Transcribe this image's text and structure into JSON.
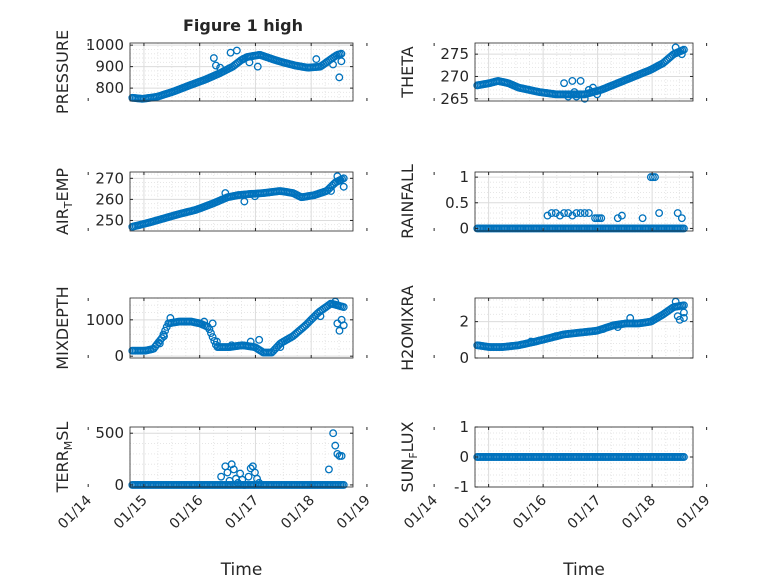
{
  "figure": {
    "title": "Figure 1 high"
  },
  "colors": {
    "marker": "#0072BD",
    "grid": "#d9d9d9",
    "axis": "#262626"
  },
  "chart_data": [
    {
      "type": "scatter",
      "id": "pressure",
      "title": "Figure 1 high",
      "ylabel": "PRESSURE",
      "ylabel_sub": "",
      "xlim": [
        "2021-01-14T18:00",
        "2021-01-18T18:00"
      ],
      "ylim": [
        740,
        1010
      ],
      "yticks": [
        800,
        900,
        1000
      ],
      "grid": true,
      "xlabel": "",
      "x_range": [
        "2021-01-14T19:00",
        "2021-01-18T13:00"
      ],
      "profile": [
        [
          0,
          755
        ],
        [
          0.05,
          750
        ],
        [
          0.12,
          760
        ],
        [
          0.2,
          785
        ],
        [
          0.28,
          815
        ],
        [
          0.35,
          840
        ],
        [
          0.42,
          870
        ],
        [
          0.48,
          900
        ],
        [
          0.52,
          930
        ],
        [
          0.55,
          945
        ],
        [
          0.58,
          950
        ],
        [
          0.61,
          955
        ],
        [
          0.64,
          945
        ],
        [
          0.67,
          935
        ],
        [
          0.72,
          920
        ],
        [
          0.78,
          905
        ],
        [
          0.84,
          895
        ],
        [
          0.9,
          900
        ],
        [
          0.95,
          935
        ],
        [
          0.98,
          955
        ],
        [
          1,
          960
        ]
      ],
      "extra_points": [
        [
          0.39,
          940
        ],
        [
          0.4,
          905
        ],
        [
          0.42,
          895
        ],
        [
          0.47,
          965
        ],
        [
          0.5,
          975
        ],
        [
          0.53,
          935
        ],
        [
          0.56,
          920
        ],
        [
          0.6,
          900
        ],
        [
          0.88,
          935
        ],
        [
          0.93,
          920
        ],
        [
          0.96,
          910
        ],
        [
          0.99,
          850
        ],
        [
          1.0,
          925
        ]
      ]
    },
    {
      "type": "scatter",
      "id": "theta",
      "title": "",
      "ylabel": "THETA",
      "ylabel_sub": "",
      "xlim": [
        "2021-01-14T18:00",
        "2021-01-18T18:00"
      ],
      "ylim": [
        264.5,
        277.5
      ],
      "yticks": [
        265,
        270,
        275
      ],
      "grid": true,
      "xlabel": "",
      "x_range": [
        "2021-01-14T19:00",
        "2021-01-18T14:00"
      ],
      "profile": [
        [
          0,
          268
        ],
        [
          0.06,
          268.5
        ],
        [
          0.1,
          269
        ],
        [
          0.15,
          268.5
        ],
        [
          0.2,
          267.5
        ],
        [
          0.3,
          266.5
        ],
        [
          0.38,
          266
        ],
        [
          0.45,
          266
        ],
        [
          0.52,
          266
        ],
        [
          0.6,
          267
        ],
        [
          0.68,
          268.5
        ],
        [
          0.76,
          270
        ],
        [
          0.84,
          271.5
        ],
        [
          0.9,
          273
        ],
        [
          0.95,
          275
        ],
        [
          1,
          276
        ]
      ],
      "extra_points": [
        [
          0.42,
          268.5
        ],
        [
          0.44,
          265.5
        ],
        [
          0.46,
          269
        ],
        [
          0.47,
          266.5
        ],
        [
          0.48,
          265.5
        ],
        [
          0.5,
          269
        ],
        [
          0.52,
          265
        ],
        [
          0.54,
          267
        ],
        [
          0.56,
          267.5
        ],
        [
          0.58,
          266
        ],
        [
          0.96,
          276.5
        ],
        [
          0.99,
          275
        ]
      ]
    },
    {
      "type": "scatter",
      "id": "airtemp",
      "title": "",
      "ylabel": "AIR",
      "ylabel_sub": "T",
      "ylabel_tail": "EMP",
      "xlim": [
        "2021-01-14T18:00",
        "2021-01-18T18:00"
      ],
      "ylim": [
        245,
        273
      ],
      "yticks": [
        250,
        260,
        270
      ],
      "grid": true,
      "xlabel": "",
      "x_range": [
        "2021-01-14T19:00",
        "2021-01-18T14:00"
      ],
      "profile": [
        [
          0,
          247
        ],
        [
          0.08,
          249
        ],
        [
          0.15,
          251
        ],
        [
          0.22,
          253
        ],
        [
          0.3,
          255
        ],
        [
          0.38,
          258
        ],
        [
          0.45,
          261
        ],
        [
          0.5,
          262
        ],
        [
          0.55,
          262.5
        ],
        [
          0.62,
          263
        ],
        [
          0.7,
          264
        ],
        [
          0.76,
          263
        ],
        [
          0.8,
          261
        ],
        [
          0.86,
          262
        ],
        [
          0.92,
          264
        ],
        [
          0.96,
          268
        ],
        [
          1,
          270
        ]
      ],
      "extra_points": [
        [
          0.44,
          263
        ],
        [
          0.5,
          262
        ],
        [
          0.53,
          259
        ],
        [
          0.58,
          261.5
        ],
        [
          0.94,
          264
        ],
        [
          0.97,
          271
        ],
        [
          0.98,
          269
        ],
        [
          1.0,
          266
        ]
      ]
    },
    {
      "type": "scatter",
      "id": "rainfall",
      "title": "",
      "ylabel": "RAINFALL",
      "ylabel_sub": "",
      "xlim": [
        "2021-01-14T18:00",
        "2021-01-18T18:00"
      ],
      "ylim": [
        -0.05,
        1.1
      ],
      "yticks": [
        0,
        0.5,
        1
      ],
      "grid": true,
      "xlabel": "",
      "x_range": [
        "2021-01-14T19:00",
        "2021-01-18T14:00"
      ],
      "profile": [
        [
          0,
          0
        ],
        [
          1,
          0
        ]
      ],
      "extra_points": [
        [
          0.34,
          0.25
        ],
        [
          0.36,
          0.3
        ],
        [
          0.38,
          0.3
        ],
        [
          0.4,
          0.25
        ],
        [
          0.42,
          0.3
        ],
        [
          0.44,
          0.3
        ],
        [
          0.46,
          0.25
        ],
        [
          0.48,
          0.3
        ],
        [
          0.5,
          0.3
        ],
        [
          0.52,
          0.3
        ],
        [
          0.54,
          0.3
        ],
        [
          0.57,
          0.2
        ],
        [
          0.58,
          0.2
        ],
        [
          0.59,
          0.2
        ],
        [
          0.6,
          0.2
        ],
        [
          0.68,
          0.2
        ],
        [
          0.7,
          0.25
        ],
        [
          0.8,
          0.2
        ],
        [
          0.84,
          1
        ],
        [
          0.85,
          1
        ],
        [
          0.86,
          1
        ],
        [
          0.88,
          0.3
        ],
        [
          0.97,
          0.3
        ],
        [
          0.99,
          0.2
        ]
      ]
    },
    {
      "type": "scatter",
      "id": "mixdepth",
      "title": "",
      "ylabel": "MIXDEPTH",
      "ylabel_sub": "",
      "xlim": [
        "2021-01-14T18:00",
        "2021-01-18T18:00"
      ],
      "ylim": [
        -50,
        1600
      ],
      "yticks": [
        0,
        1000
      ],
      "grid": true,
      "xlabel": "",
      "x_range": [
        "2021-01-14T19:00",
        "2021-01-18T14:00"
      ],
      "profile": [
        [
          0,
          150
        ],
        [
          0.06,
          150
        ],
        [
          0.1,
          200
        ],
        [
          0.14,
          500
        ],
        [
          0.17,
          900
        ],
        [
          0.22,
          950
        ],
        [
          0.28,
          950
        ],
        [
          0.32,
          900
        ],
        [
          0.36,
          800
        ],
        [
          0.4,
          250
        ],
        [
          0.46,
          250
        ],
        [
          0.52,
          300
        ],
        [
          0.58,
          250
        ],
        [
          0.62,
          100
        ],
        [
          0.66,
          100
        ],
        [
          0.7,
          350
        ],
        [
          0.76,
          550
        ],
        [
          0.82,
          850
        ],
        [
          0.88,
          1200
        ],
        [
          0.94,
          1450
        ],
        [
          1,
          1350
        ]
      ],
      "extra_points": [
        [
          0.13,
          350
        ],
        [
          0.15,
          550
        ],
        [
          0.18,
          1050
        ],
        [
          0.34,
          950
        ],
        [
          0.38,
          900
        ],
        [
          0.4,
          400
        ],
        [
          0.47,
          300
        ],
        [
          0.52,
          300
        ],
        [
          0.56,
          400
        ],
        [
          0.6,
          450
        ],
        [
          0.7,
          250
        ],
        [
          0.89,
          1100
        ],
        [
          0.96,
          1500
        ],
        [
          0.97,
          900
        ],
        [
          0.98,
          700
        ],
        [
          1.0,
          850
        ],
        [
          0.99,
          1000
        ]
      ]
    },
    {
      "type": "scatter",
      "id": "h2omixra",
      "title": "",
      "ylabel": "H2OMIXRA",
      "ylabel_sub": "",
      "xlim": [
        "2021-01-14T18:00",
        "2021-01-18T18:00"
      ],
      "ylim": [
        0,
        3.3
      ],
      "yticks": [
        0,
        2
      ],
      "grid": true,
      "xlabel": "",
      "x_range": [
        "2021-01-14T19:00",
        "2021-01-18T14:00"
      ],
      "profile": [
        [
          0,
          0.7
        ],
        [
          0.06,
          0.6
        ],
        [
          0.12,
          0.6
        ],
        [
          0.2,
          0.7
        ],
        [
          0.28,
          0.9
        ],
        [
          0.35,
          1.1
        ],
        [
          0.42,
          1.3
        ],
        [
          0.5,
          1.4
        ],
        [
          0.58,
          1.5
        ],
        [
          0.66,
          1.8
        ],
        [
          0.72,
          1.9
        ],
        [
          0.78,
          1.9
        ],
        [
          0.84,
          2.0
        ],
        [
          0.9,
          2.4
        ],
        [
          0.95,
          2.8
        ],
        [
          1,
          2.9
        ]
      ],
      "extra_points": [
        [
          0.26,
          0.9
        ],
        [
          0.38,
          1.2
        ],
        [
          0.61,
          1.6
        ],
        [
          0.68,
          1.7
        ],
        [
          0.74,
          2.2
        ],
        [
          0.96,
          3.1
        ],
        [
          0.97,
          2.3
        ],
        [
          0.98,
          2.1
        ],
        [
          1.0,
          2.5
        ],
        [
          1.0,
          2.2
        ]
      ]
    },
    {
      "type": "scatter",
      "id": "terrmsl",
      "title": "",
      "ylabel": "TERR",
      "ylabel_sub": "M",
      "ylabel_tail": "SL",
      "xlim": [
        "2021-01-14T18:00",
        "2021-01-18T18:00"
      ],
      "ylim": [
        -20,
        560
      ],
      "yticks": [
        0,
        500
      ],
      "grid": true,
      "xlabel": "Time",
      "x_range": [
        "2021-01-14T19:00",
        "2021-01-18T14:00"
      ],
      "profile": [
        [
          0,
          0
        ],
        [
          1,
          0
        ]
      ],
      "extra_points": [
        [
          0.42,
          80
        ],
        [
          0.44,
          180
        ],
        [
          0.45,
          120
        ],
        [
          0.46,
          40
        ],
        [
          0.47,
          200
        ],
        [
          0.48,
          150
        ],
        [
          0.49,
          60
        ],
        [
          0.5,
          20
        ],
        [
          0.51,
          110
        ],
        [
          0.52,
          50
        ],
        [
          0.53,
          0
        ],
        [
          0.55,
          80
        ],
        [
          0.56,
          160
        ],
        [
          0.57,
          180
        ],
        [
          0.58,
          120
        ],
        [
          0.59,
          60
        ],
        [
          0.6,
          20
        ],
        [
          0.93,
          150
        ],
        [
          0.95,
          500
        ],
        [
          0.96,
          380
        ],
        [
          0.97,
          300
        ],
        [
          0.98,
          280
        ],
        [
          0.99,
          280
        ]
      ]
    },
    {
      "type": "scatter",
      "id": "sunflux",
      "title": "",
      "ylabel": "SUN",
      "ylabel_sub": "F",
      "ylabel_tail": "LUX",
      "xlim": [
        "2021-01-14T18:00",
        "2021-01-18T18:00"
      ],
      "ylim": [
        -1,
        1
      ],
      "yticks": [
        -1,
        0,
        1
      ],
      "grid": true,
      "xlabel": "Time",
      "x_range": [
        "2021-01-14T19:00",
        "2021-01-18T14:00"
      ],
      "profile": [
        [
          0,
          0
        ],
        [
          1,
          0
        ]
      ],
      "extra_points": []
    }
  ],
  "xticks": [
    "01/14",
    "01/15",
    "01/16",
    "01/17",
    "01/18",
    "01/19"
  ]
}
